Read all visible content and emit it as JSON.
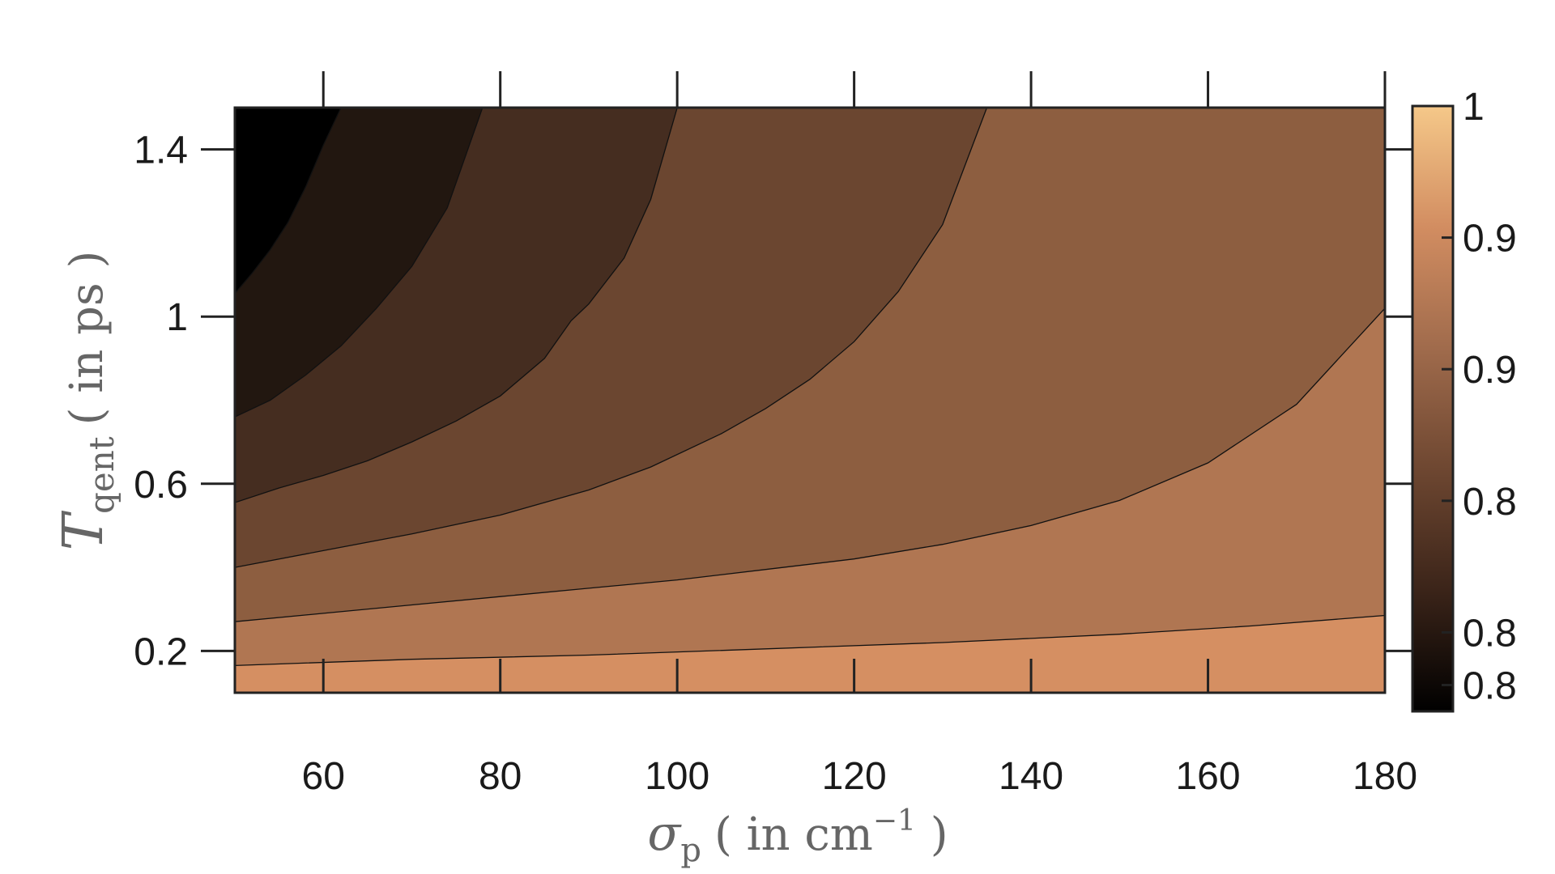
{
  "chart_data": {
    "type": "contour",
    "xlabel": {
      "symbol": "σ",
      "sub": "p",
      "unit_prefix": "( in cm",
      "sup": "−1",
      "unit_suffix": " )"
    },
    "ylabel": {
      "symbol": "T",
      "sub": "qent",
      "unit": "( in ps )"
    },
    "xlim": [
      50,
      180
    ],
    "ylim": [
      0.1,
      1.5
    ],
    "x_ticks": [
      60,
      80,
      100,
      120,
      140,
      160,
      180
    ],
    "x_tick_labels": [
      "60",
      "80",
      "100",
      "120",
      "140",
      "160",
      "180"
    ],
    "y_ticks": [
      0.2,
      0.6,
      1.0,
      1.4
    ],
    "y_tick_labels": [
      "0.2",
      "0.6",
      "1",
      "1.4"
    ],
    "colorbar": {
      "range": [
        0.77,
        1.0
      ],
      "ticks": [
        1.0,
        0.95,
        0.9,
        0.85,
        0.8,
        0.78
      ],
      "tick_labels": [
        "1",
        "0.9",
        "0.9",
        "0.8",
        "0.8",
        "0.8"
      ],
      "gradient": [
        "#000000",
        "#3b2419",
        "#6e4731",
        "#a06b4c",
        "#d28d61",
        "#f5c889"
      ]
    },
    "levels": [
      {
        "fill": "#000000",
        "boundary": []
      },
      {
        "fill": "#221710",
        "boundary": [
          [
            50.0,
            1.055
          ],
          [
            52.0,
            1.105
          ],
          [
            54.0,
            1.16
          ],
          [
            56.0,
            1.225
          ],
          [
            58.0,
            1.31
          ],
          [
            60.0,
            1.41
          ],
          [
            62.0,
            1.5
          ]
        ]
      },
      {
        "fill": "#452d20",
        "boundary": [
          [
            50.0,
            0.76
          ],
          [
            54.0,
            0.8
          ],
          [
            58.0,
            0.86
          ],
          [
            62.0,
            0.93
          ],
          [
            66.0,
            1.02
          ],
          [
            70.0,
            1.12
          ],
          [
            74.0,
            1.26
          ],
          [
            78.0,
            1.5
          ]
        ]
      },
      {
        "fill": "#6b4630",
        "boundary": [
          [
            50.0,
            0.555
          ],
          [
            55.0,
            0.59
          ],
          [
            60.0,
            0.62
          ],
          [
            65.0,
            0.655
          ],
          [
            70.0,
            0.7
          ],
          [
            75.0,
            0.75
          ],
          [
            80.0,
            0.81
          ],
          [
            85.0,
            0.9
          ],
          [
            88.0,
            0.99
          ],
          [
            90.0,
            1.03
          ],
          [
            94.0,
            1.14
          ],
          [
            97.0,
            1.28
          ],
          [
            100.0,
            1.5
          ]
        ]
      },
      {
        "fill": "#8d5e40",
        "boundary": [
          [
            50.0,
            0.4
          ],
          [
            60.0,
            0.44
          ],
          [
            70.0,
            0.48
          ],
          [
            80.0,
            0.525
          ],
          [
            90.0,
            0.585
          ],
          [
            97.0,
            0.64
          ],
          [
            105.0,
            0.72
          ],
          [
            110.0,
            0.78
          ],
          [
            115.0,
            0.85
          ],
          [
            120.0,
            0.94
          ],
          [
            125.0,
            1.06
          ],
          [
            130.0,
            1.22
          ],
          [
            135.0,
            1.5
          ]
        ]
      },
      {
        "fill": "#b07652",
        "boundary": [
          [
            50.0,
            0.27
          ],
          [
            60.0,
            0.29
          ],
          [
            70.0,
            0.31
          ],
          [
            80.0,
            0.33
          ],
          [
            90.0,
            0.35
          ],
          [
            100.0,
            0.37
          ],
          [
            110.0,
            0.395
          ],
          [
            120.0,
            0.42
          ],
          [
            130.0,
            0.455
          ],
          [
            140.0,
            0.5
          ],
          [
            150.0,
            0.56
          ],
          [
            160.0,
            0.65
          ],
          [
            170.0,
            0.79
          ],
          [
            180.0,
            1.02
          ]
        ]
      },
      {
        "fill": "#d58f62",
        "boundary": [
          [
            50.0,
            0.165
          ],
          [
            70.0,
            0.18
          ],
          [
            90.0,
            0.19
          ],
          [
            110.0,
            0.205
          ],
          [
            130.0,
            0.22
          ],
          [
            150.0,
            0.24
          ],
          [
            165.0,
            0.26
          ],
          [
            180.0,
            0.285
          ]
        ]
      }
    ]
  }
}
